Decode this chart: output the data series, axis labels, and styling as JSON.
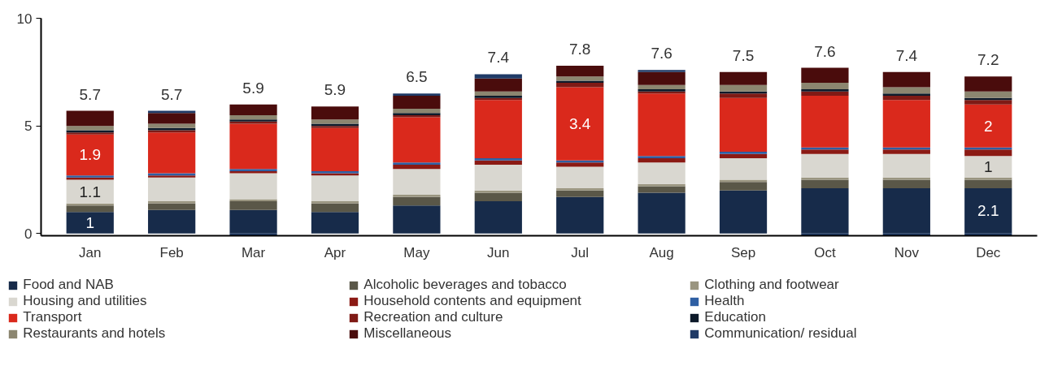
{
  "chart_data": {
    "type": "bar",
    "stacked": true,
    "categories": [
      "Jan",
      "Feb",
      "Mar",
      "Apr",
      "May",
      "Jun",
      "Jul",
      "Aug",
      "Sep",
      "Oct",
      "Nov",
      "Dec"
    ],
    "series": [
      {
        "name": "Food and NAB",
        "color": "#172b4a",
        "values": [
          1.0,
          1.1,
          1.1,
          1.0,
          1.3,
          1.5,
          1.7,
          1.9,
          2.0,
          2.1,
          2.1,
          2.1
        ],
        "value_labels": [
          "1",
          null,
          null,
          null,
          null,
          null,
          null,
          null,
          null,
          null,
          null,
          "2.1"
        ]
      },
      {
        "name": "Alcoholic beverages and tobacco",
        "color": "#5a5748",
        "values": [
          0.3,
          0.3,
          0.4,
          0.4,
          0.4,
          0.4,
          0.3,
          0.3,
          0.4,
          0.4,
          0.4,
          0.4
        ]
      },
      {
        "name": "Clothing and footwear",
        "color": "#9a9580",
        "values": [
          0.1,
          0.1,
          0.1,
          0.1,
          0.1,
          0.1,
          0.1,
          0.1,
          0.1,
          0.1,
          0.1,
          0.1
        ]
      },
      {
        "name": "Housing and utilities",
        "color": "#d9d7d0",
        "values": [
          1.1,
          1.1,
          1.2,
          1.2,
          1.2,
          1.2,
          1.0,
          1.0,
          1.0,
          1.1,
          1.1,
          1.0
        ],
        "value_labels": [
          "1.1",
          null,
          null,
          null,
          null,
          null,
          null,
          null,
          null,
          null,
          null,
          "1"
        ]
      },
      {
        "name": "Household contents and equipment",
        "color": "#8b1a14",
        "values": [
          0.1,
          0.1,
          0.1,
          0.1,
          0.2,
          0.2,
          0.2,
          0.2,
          0.2,
          0.2,
          0.2,
          0.3
        ]
      },
      {
        "name": "Health",
        "color": "#2e5fa3",
        "values": [
          0.1,
          0.1,
          0.1,
          0.1,
          0.1,
          0.1,
          0.1,
          0.1,
          0.1,
          0.1,
          0.1,
          0.1
        ]
      },
      {
        "name": "Transport",
        "color": "#da291c",
        "values": [
          1.9,
          1.9,
          2.1,
          2.0,
          2.1,
          2.7,
          3.4,
          2.9,
          2.5,
          2.4,
          2.2,
          2.0
        ],
        "value_labels": [
          "1.9",
          null,
          null,
          null,
          null,
          null,
          "3.4",
          null,
          null,
          null,
          null,
          "2"
        ]
      },
      {
        "name": "Recreation and culture",
        "color": "#7f1a15",
        "values": [
          0.1,
          0.1,
          0.1,
          0.1,
          0.1,
          0.1,
          0.2,
          0.1,
          0.2,
          0.2,
          0.2,
          0.2
        ]
      },
      {
        "name": "Education",
        "color": "#0d1a2a",
        "values": [
          0.1,
          0.1,
          0.1,
          0.1,
          0.1,
          0.1,
          0.1,
          0.1,
          0.1,
          0.1,
          0.1,
          0.1
        ]
      },
      {
        "name": "Restaurants and hotels",
        "color": "#8c8670",
        "values": [
          0.2,
          0.2,
          0.2,
          0.2,
          0.2,
          0.2,
          0.2,
          0.2,
          0.3,
          0.3,
          0.3,
          0.3
        ]
      },
      {
        "name": "Miscellaneous",
        "color": "#4a0c0c",
        "values": [
          0.7,
          0.5,
          0.5,
          0.6,
          0.6,
          0.6,
          0.5,
          0.6,
          0.6,
          0.7,
          0.7,
          0.7
        ]
      },
      {
        "name": "Communication/ residual",
        "color": "#1f3a66",
        "values": [
          0.0,
          0.1,
          -0.1,
          0.0,
          0.1,
          0.2,
          0.0,
          0.1,
          0.0,
          -0.1,
          -0.1,
          -0.1
        ]
      }
    ],
    "totals": [
      "5.7",
      "5.7",
      "5.9",
      "5.9",
      "6.5",
      "7.4",
      "7.8",
      "7.6",
      "7.5",
      "7.6",
      "7.4",
      "7.2"
    ],
    "ylim": [
      -0.1,
      10
    ],
    "yticks": [
      0,
      5,
      10
    ],
    "grid": false,
    "legend": "bottom"
  }
}
